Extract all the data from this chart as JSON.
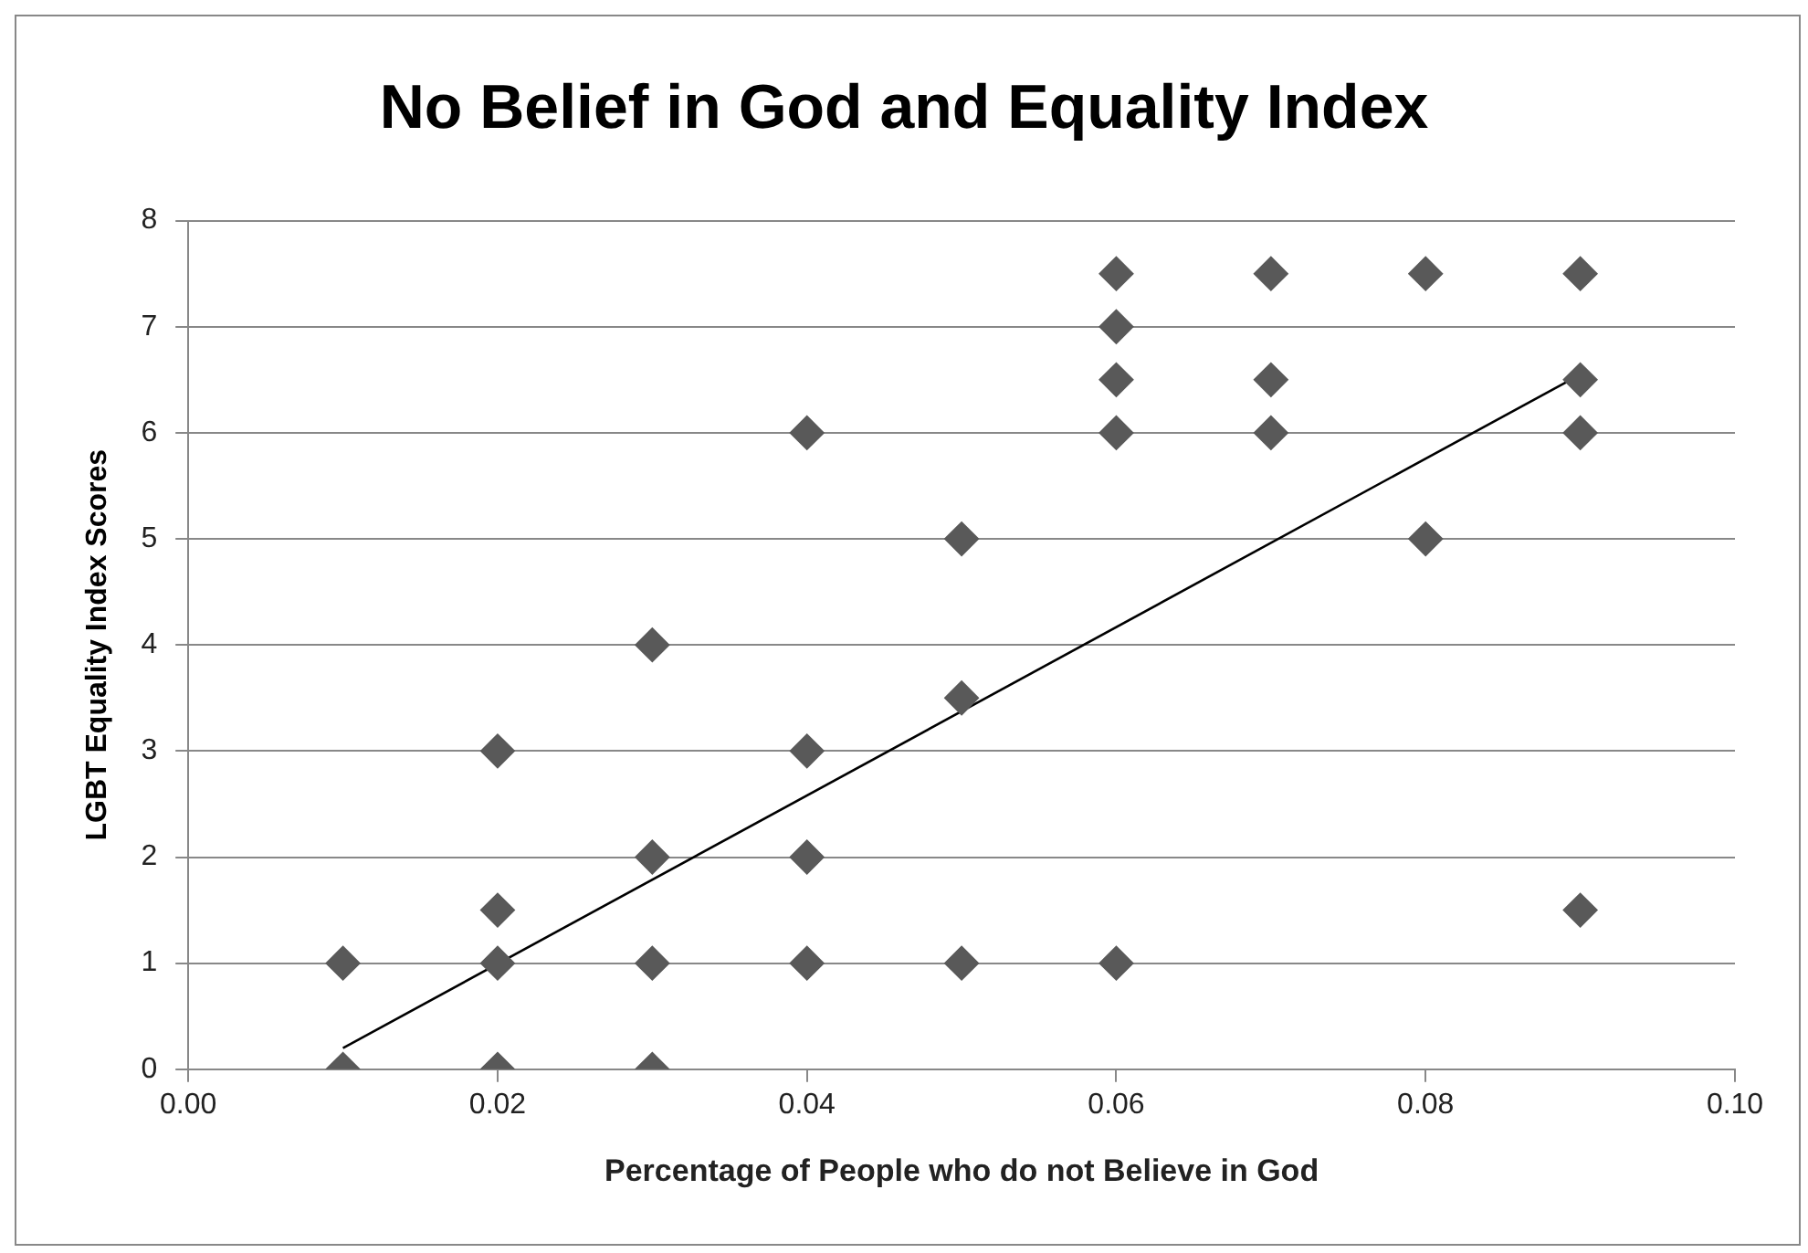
{
  "chart_data": {
    "type": "scatter",
    "title": "No Belief in God and Equality Index",
    "xlabel": "Percentage of People who do not Believe in God",
    "ylabel": "LGBT Equality Index Scores",
    "series": [
      {
        "type": "scatter",
        "color": "#595959",
        "marker": "diamond",
        "x": [
          0.01,
          0.01,
          0.02,
          0.02,
          0.02,
          0.02,
          0.03,
          0.03,
          0.03,
          0.03,
          0.04,
          0.04,
          0.04,
          0.04,
          0.05,
          0.05,
          0.05,
          0.06,
          0.06,
          0.06,
          0.06,
          0.06,
          0.07,
          0.07,
          0.07,
          0.08,
          0.08,
          0.09,
          0.09,
          0.09,
          0.09
        ],
        "values": [
          1,
          0,
          3,
          1.5,
          1,
          0,
          4,
          2,
          1,
          0,
          6,
          3,
          2,
          1,
          5,
          3.5,
          1,
          7.5,
          7,
          6.5,
          6,
          1,
          7.5,
          6.5,
          6,
          7.5,
          5,
          7.5,
          6.5,
          6,
          1.5
        ]
      },
      {
        "type": "line",
        "color": "#000000",
        "marker": "none",
        "x": [
          0.01,
          0.09
        ],
        "values": [
          0.2,
          6.55
        ]
      }
    ],
    "xlim": [
      0,
      0.1
    ],
    "xticks": [
      {
        "value": 0,
        "label": "0.00"
      },
      {
        "value": 0.02,
        "label": "0.02"
      },
      {
        "value": 0.04,
        "label": "0.04"
      },
      {
        "value": 0.06,
        "label": "0.06"
      },
      {
        "value": 0.08,
        "label": "0.08"
      },
      {
        "value": 0.1,
        "label": "0.10"
      }
    ],
    "ylim": [
      0,
      8
    ],
    "yticks": [
      0,
      1,
      2,
      3,
      4,
      5,
      6,
      7,
      8
    ],
    "grid": "y",
    "legend": false
  }
}
